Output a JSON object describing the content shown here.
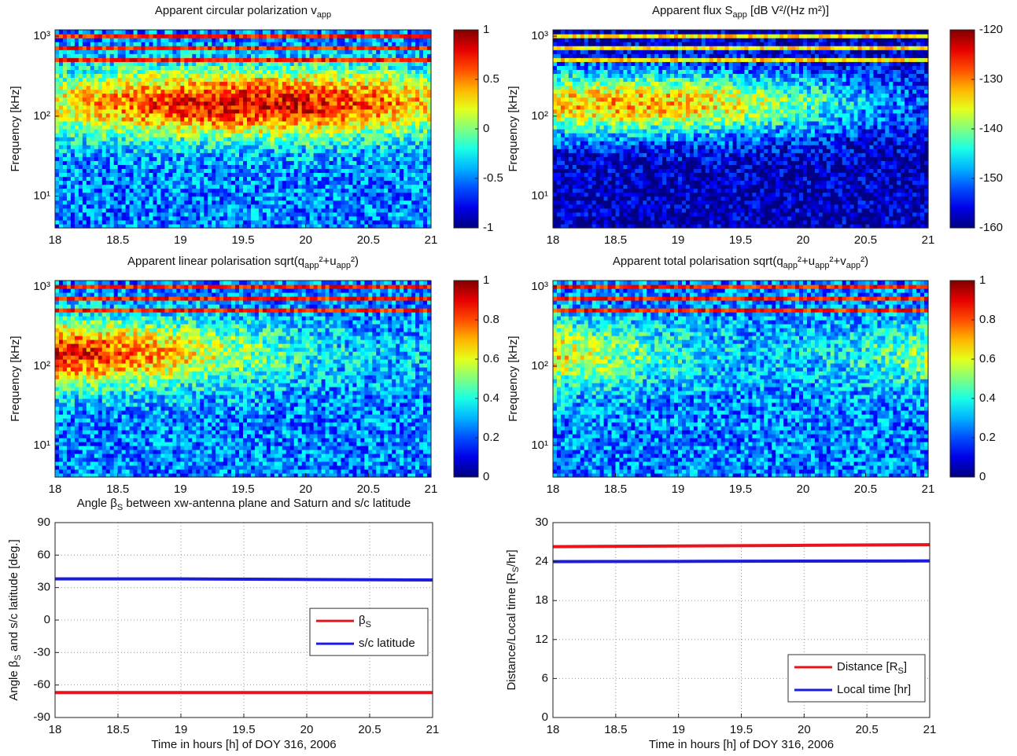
{
  "chart_data": [
    {
      "type": "spectrogram",
      "title": [
        "Apparent circular polarization v",
        "app"
      ],
      "ylabel": [
        "Frequency [kHz]"
      ],
      "xlim": [
        18,
        21
      ],
      "xticks": [
        18,
        18.5,
        19,
        19.5,
        20,
        20.5,
        21
      ],
      "yscale": "log",
      "ylim": [
        4,
        1200
      ],
      "yticks": [
        {
          "value": 10,
          "label": "10¹"
        },
        {
          "value": 100,
          "label": "10²"
        },
        {
          "value": 1000,
          "label": "10³"
        }
      ],
      "clim": [
        -1,
        1
      ],
      "cticks": [
        -1,
        -0.5,
        0,
        0.5,
        1
      ]
    },
    {
      "type": "spectrogram",
      "title": [
        "Apparent flux S",
        "app",
        " [dB V²/(Hz m²)]"
      ],
      "ylabel": [
        "Frequency [kHz]"
      ],
      "xlim": [
        18,
        21
      ],
      "xticks": [
        18,
        18.5,
        19,
        19.5,
        20,
        20.5,
        21
      ],
      "yscale": "log",
      "ylim": [
        4,
        1200
      ],
      "yticks": [
        {
          "value": 10,
          "label": "10¹"
        },
        {
          "value": 100,
          "label": "10²"
        },
        {
          "value": 1000,
          "label": "10³"
        }
      ],
      "clim": [
        -160,
        -120
      ],
      "cticks": [
        -160,
        -150,
        -140,
        -130,
        -120
      ]
    },
    {
      "type": "spectrogram",
      "title": [
        "Apparent linear polarisation sqrt(q",
        "app",
        "²+u",
        "app",
        "²)"
      ],
      "ylabel": [
        "Frequency [kHz]"
      ],
      "xlim": [
        18,
        21
      ],
      "xticks": [
        18,
        18.5,
        19,
        19.5,
        20,
        20.5,
        21
      ],
      "yscale": "log",
      "ylim": [
        4,
        1200
      ],
      "yticks": [
        {
          "value": 10,
          "label": "10¹"
        },
        {
          "value": 100,
          "label": "10²"
        },
        {
          "value": 1000,
          "label": "10³"
        }
      ],
      "clim": [
        0,
        1
      ],
      "cticks": [
        0,
        0.2,
        0.4,
        0.6,
        0.8,
        1
      ]
    },
    {
      "type": "spectrogram",
      "title": [
        "Apparent total polarisation sqrt(q",
        "app",
        "²+u",
        "app",
        "²+v",
        "app",
        "²)"
      ],
      "ylabel": [
        "Frequency [kHz]"
      ],
      "xlim": [
        18,
        21
      ],
      "xticks": [
        18,
        18.5,
        19,
        19.5,
        20,
        20.5,
        21
      ],
      "yscale": "log",
      "ylim": [
        4,
        1200
      ],
      "yticks": [
        {
          "value": 10,
          "label": "10¹"
        },
        {
          "value": 100,
          "label": "10²"
        },
        {
          "value": 1000,
          "label": "10³"
        }
      ],
      "clim": [
        0,
        1
      ],
      "cticks": [
        0,
        0.2,
        0.4,
        0.6,
        0.8,
        1
      ]
    },
    {
      "type": "line",
      "title": [
        "Angle β",
        "S",
        " between xw-antenna plane and Saturn and s/c latitude"
      ],
      "ylabel": [
        "Angle β",
        "S",
        " and s/c latitude [deg.]"
      ],
      "xlabel": "Time in hours [h] of DOY 316, 2006",
      "xlim": [
        18,
        21
      ],
      "xticks": [
        18,
        18.5,
        19,
        19.5,
        20,
        20.5,
        21
      ],
      "ylim": [
        -90,
        90
      ],
      "yticks": [
        -90,
        -60,
        -30,
        0,
        30,
        60,
        90
      ],
      "grid": true,
      "legend": "right",
      "x": [
        18,
        19,
        20,
        21
      ],
      "series": [
        {
          "name": [
            "β",
            "S"
          ],
          "color": "#e8141c",
          "values": [
            -67,
            -67,
            -67,
            -67
          ]
        },
        {
          "name": [
            "s/c latitude"
          ],
          "color": "#1c1cdc",
          "values": [
            38,
            38,
            37.5,
            37
          ]
        }
      ]
    },
    {
      "type": "line",
      "title": [],
      "ylabel": [
        "Distance/Local time [R",
        "S",
        "/hr]"
      ],
      "xlabel": "Time in hours [h] of DOY 316, 2006",
      "xlim": [
        18,
        21
      ],
      "xticks": [
        18,
        18.5,
        19,
        19.5,
        20,
        20.5,
        21
      ],
      "ylim": [
        0,
        30
      ],
      "yticks": [
        0,
        6,
        12,
        18,
        24,
        30
      ],
      "grid": true,
      "legend": "lower right",
      "x": [
        18,
        19,
        20,
        21
      ],
      "series": [
        {
          "name": [
            "Distance [R",
            "S",
            "]"
          ],
          "color": "#e8141c",
          "values": [
            26.3,
            26.4,
            26.5,
            26.6
          ]
        },
        {
          "name": [
            "Local time [hr]"
          ],
          "color": "#1c1cdc",
          "values": [
            24,
            24.03,
            24.07,
            24.1
          ]
        }
      ]
    }
  ]
}
